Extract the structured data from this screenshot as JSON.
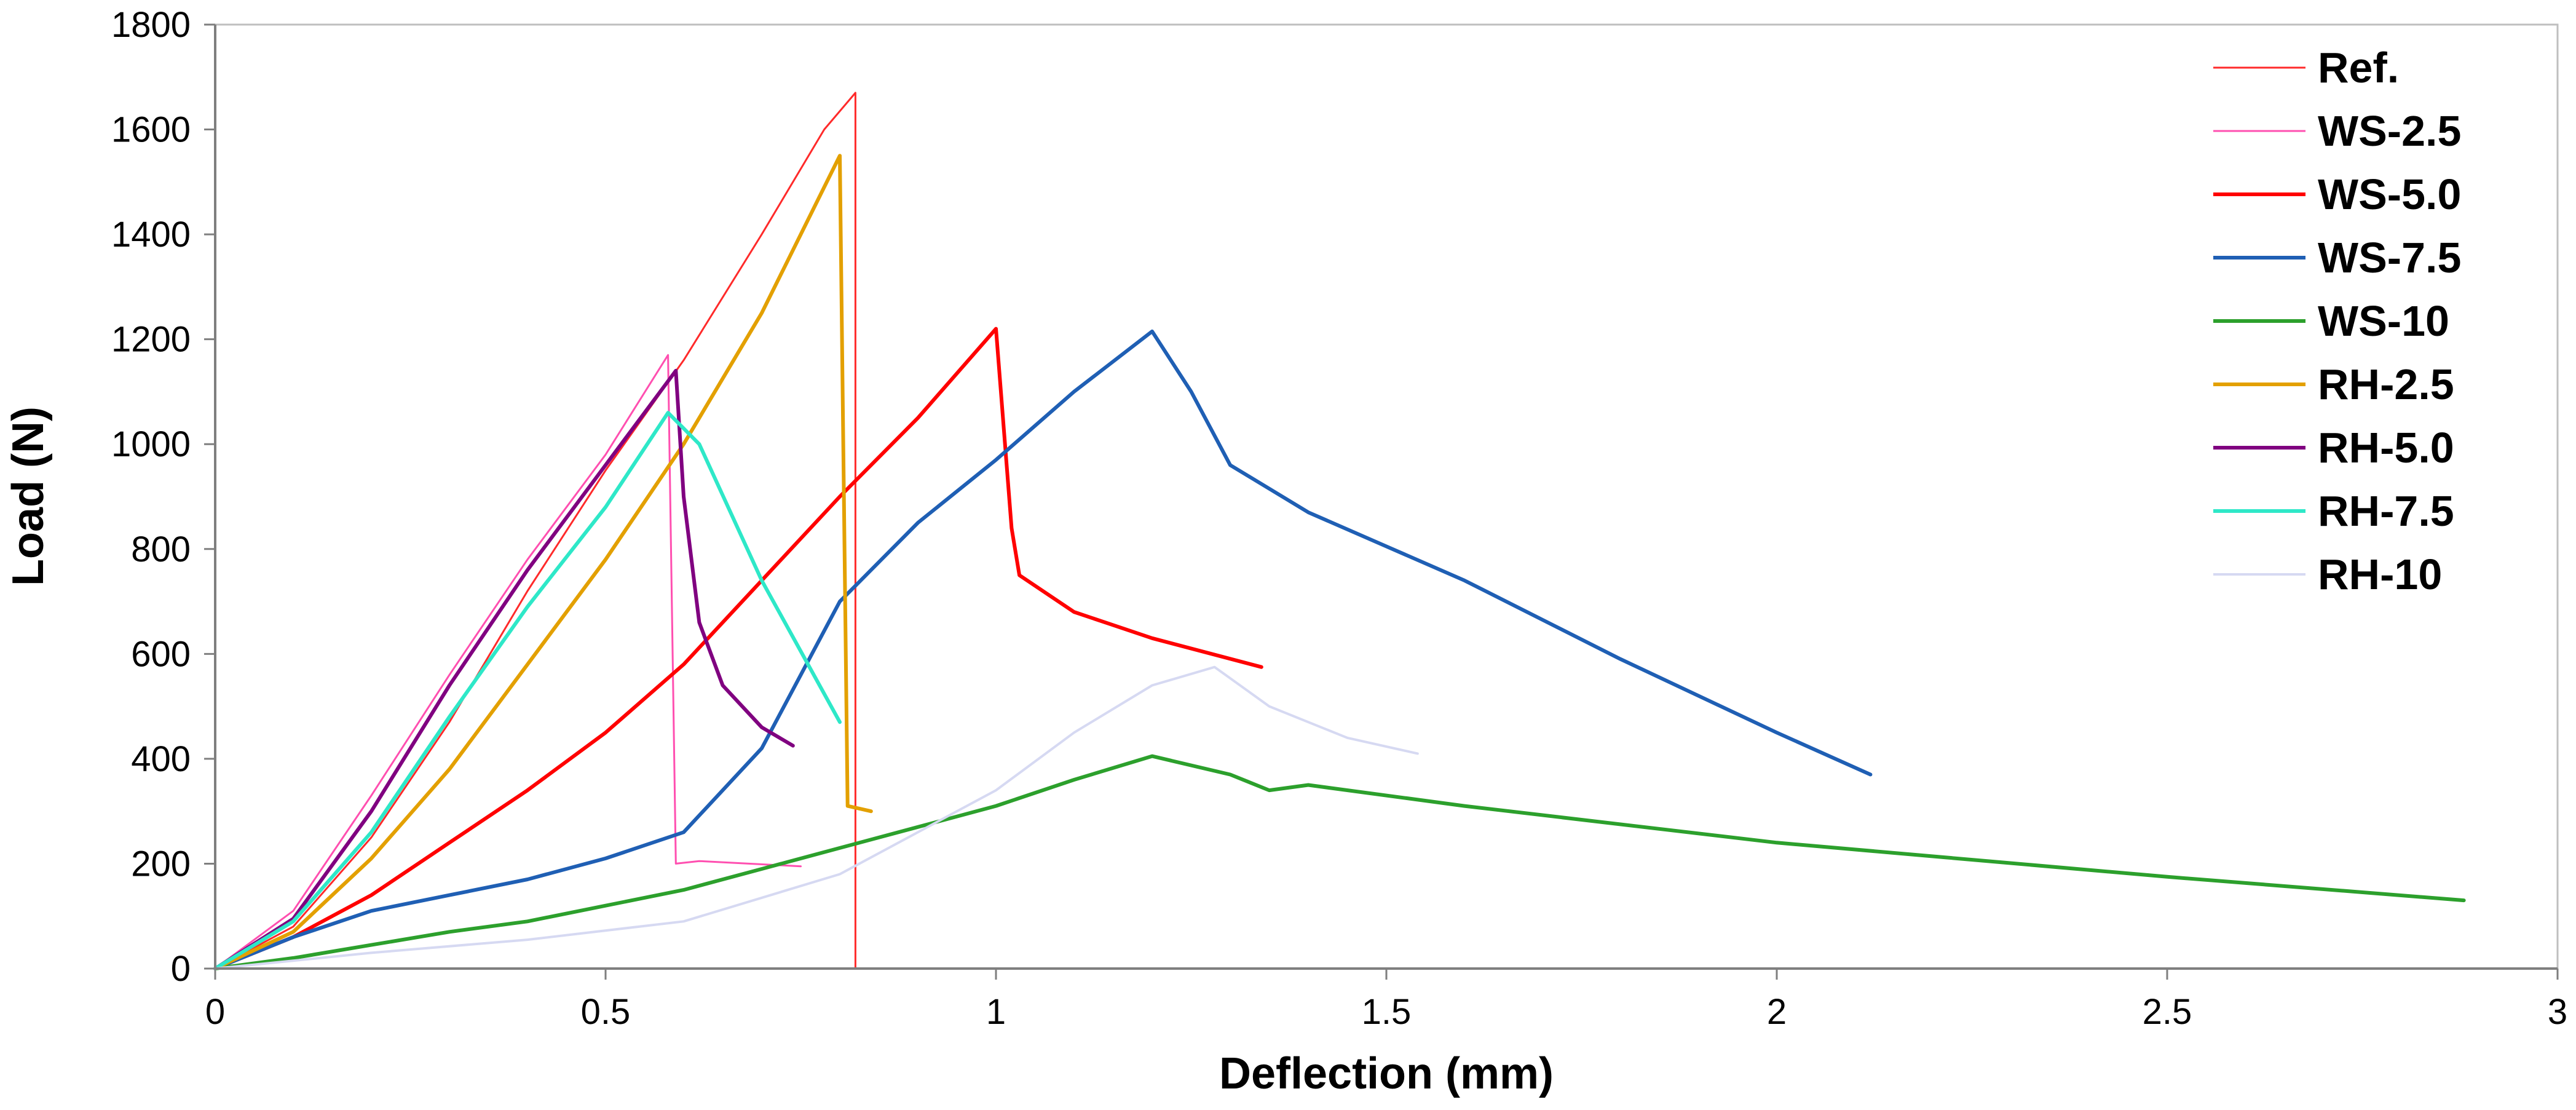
{
  "chart_data": {
    "type": "line",
    "title": "",
    "xlabel": "Deflection (mm)",
    "ylabel": "Load (N)",
    "xlim": [
      0,
      3
    ],
    "ylim": [
      0,
      1800
    ],
    "xticks": [
      0,
      0.5,
      1,
      1.5,
      2,
      2.5,
      3
    ],
    "xtick_labels": [
      "0",
      "0.5",
      "1",
      "1.5",
      "2",
      "2.5",
      "3"
    ],
    "yticks": [
      0,
      200,
      400,
      600,
      800,
      1000,
      1200,
      1400,
      1600,
      1800
    ],
    "ytick_labels": [
      "0",
      "200",
      "400",
      "600",
      "800",
      "1000",
      "1200",
      "1400",
      "1600",
      "1800"
    ],
    "grid": false,
    "legend_position": "top-right",
    "series": [
      {
        "name": "Ref.",
        "color": "#ff2a2a",
        "width": 3,
        "points": [
          [
            0,
            0
          ],
          [
            0.1,
            80
          ],
          [
            0.2,
            250
          ],
          [
            0.3,
            470
          ],
          [
            0.4,
            720
          ],
          [
            0.5,
            950
          ],
          [
            0.6,
            1160
          ],
          [
            0.7,
            1400
          ],
          [
            0.78,
            1600
          ],
          [
            0.82,
            1670
          ],
          [
            0.82,
            0
          ]
        ]
      },
      {
        "name": "WS-2.5",
        "color": "#ff4fb0",
        "width": 3,
        "points": [
          [
            0,
            0
          ],
          [
            0.1,
            110
          ],
          [
            0.2,
            330
          ],
          [
            0.3,
            560
          ],
          [
            0.4,
            780
          ],
          [
            0.5,
            980
          ],
          [
            0.58,
            1170
          ],
          [
            0.59,
            200
          ],
          [
            0.62,
            205
          ],
          [
            0.75,
            195
          ]
        ]
      },
      {
        "name": "WS-5.0",
        "color": "#ff0000",
        "width": 6,
        "points": [
          [
            0,
            0
          ],
          [
            0.1,
            60
          ],
          [
            0.2,
            140
          ],
          [
            0.3,
            240
          ],
          [
            0.4,
            340
          ],
          [
            0.5,
            450
          ],
          [
            0.6,
            580
          ],
          [
            0.7,
            740
          ],
          [
            0.8,
            900
          ],
          [
            0.9,
            1050
          ],
          [
            1.0,
            1220
          ],
          [
            1.02,
            840
          ],
          [
            1.03,
            750
          ],
          [
            1.1,
            680
          ],
          [
            1.2,
            630
          ],
          [
            1.34,
            575
          ]
        ]
      },
      {
        "name": "WS-7.5",
        "color": "#1f5fb4",
        "width": 6,
        "points": [
          [
            0,
            0
          ],
          [
            0.1,
            60
          ],
          [
            0.2,
            110
          ],
          [
            0.3,
            140
          ],
          [
            0.4,
            170
          ],
          [
            0.5,
            210
          ],
          [
            0.6,
            260
          ],
          [
            0.7,
            420
          ],
          [
            0.8,
            700
          ],
          [
            0.9,
            850
          ],
          [
            1.0,
            970
          ],
          [
            1.1,
            1100
          ],
          [
            1.2,
            1215
          ],
          [
            1.25,
            1100
          ],
          [
            1.3,
            960
          ],
          [
            1.4,
            870
          ],
          [
            1.6,
            740
          ],
          [
            1.8,
            590
          ],
          [
            2.0,
            450
          ],
          [
            2.12,
            370
          ]
        ]
      },
      {
        "name": "WS-10",
        "color": "#2ca02c",
        "width": 6,
        "points": [
          [
            0,
            0
          ],
          [
            0.1,
            20
          ],
          [
            0.2,
            45
          ],
          [
            0.3,
            70
          ],
          [
            0.4,
            90
          ],
          [
            0.5,
            120
          ],
          [
            0.6,
            150
          ],
          [
            0.7,
            190
          ],
          [
            0.8,
            230
          ],
          [
            0.9,
            270
          ],
          [
            1.0,
            310
          ],
          [
            1.1,
            360
          ],
          [
            1.2,
            405
          ],
          [
            1.3,
            370
          ],
          [
            1.35,
            340
          ],
          [
            1.4,
            350
          ],
          [
            1.6,
            310
          ],
          [
            2.0,
            240
          ],
          [
            2.5,
            175
          ],
          [
            2.88,
            130
          ]
        ]
      },
      {
        "name": "RH-2.5",
        "color": "#e3a000",
        "width": 6,
        "points": [
          [
            0,
            0
          ],
          [
            0.1,
            70
          ],
          [
            0.2,
            210
          ],
          [
            0.3,
            380
          ],
          [
            0.4,
            580
          ],
          [
            0.5,
            780
          ],
          [
            0.6,
            1000
          ],
          [
            0.7,
            1250
          ],
          [
            0.8,
            1550
          ],
          [
            0.81,
            310
          ],
          [
            0.84,
            300
          ]
        ]
      },
      {
        "name": "RH-5.0",
        "color": "#800080",
        "width": 6,
        "points": [
          [
            0,
            0
          ],
          [
            0.1,
            95
          ],
          [
            0.2,
            300
          ],
          [
            0.3,
            540
          ],
          [
            0.4,
            760
          ],
          [
            0.5,
            960
          ],
          [
            0.59,
            1140
          ],
          [
            0.6,
            900
          ],
          [
            0.62,
            660
          ],
          [
            0.65,
            540
          ],
          [
            0.7,
            460
          ],
          [
            0.74,
            425
          ]
        ]
      },
      {
        "name": "RH-7.5",
        "color": "#2ee8c8",
        "width": 6,
        "points": [
          [
            0,
            0
          ],
          [
            0.1,
            90
          ],
          [
            0.2,
            260
          ],
          [
            0.3,
            480
          ],
          [
            0.4,
            690
          ],
          [
            0.5,
            880
          ],
          [
            0.58,
            1060
          ],
          [
            0.62,
            1000
          ],
          [
            0.7,
            740
          ],
          [
            0.8,
            470
          ]
        ]
      },
      {
        "name": "RH-10",
        "color": "#d6d9f2",
        "width": 4,
        "points": [
          [
            0,
            0
          ],
          [
            0.2,
            30
          ],
          [
            0.4,
            55
          ],
          [
            0.6,
            90
          ],
          [
            0.8,
            180
          ],
          [
            1.0,
            340
          ],
          [
            1.1,
            450
          ],
          [
            1.2,
            540
          ],
          [
            1.28,
            575
          ],
          [
            1.35,
            500
          ],
          [
            1.45,
            440
          ],
          [
            1.54,
            410
          ]
        ]
      }
    ]
  }
}
